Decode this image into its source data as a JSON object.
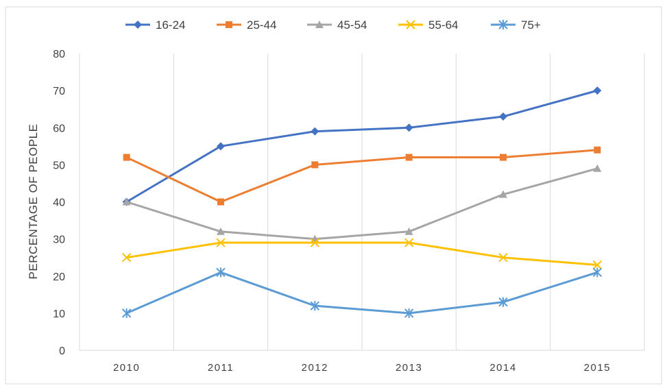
{
  "chart_data": {
    "type": "line",
    "title": "",
    "xlabel": "",
    "ylabel": "PERCENTAGE OF PEOPLE",
    "categories": [
      "2010",
      "2011",
      "2012",
      "2013",
      "2014",
      "2015"
    ],
    "ylim": [
      0,
      80
    ],
    "yticks": [
      0,
      10,
      20,
      30,
      40,
      50,
      60,
      70,
      80
    ],
    "grid": "vertical",
    "legend_position": "top",
    "series": [
      {
        "name": "16-24",
        "values": [
          40,
          55,
          59,
          60,
          63,
          70
        ],
        "color": "#4472C4",
        "marker": "diamond"
      },
      {
        "name": "25-44",
        "values": [
          52,
          40,
          50,
          52,
          52,
          54
        ],
        "color": "#ED7D31",
        "marker": "square"
      },
      {
        "name": "45-54",
        "values": [
          40,
          32,
          30,
          32,
          42,
          49
        ],
        "color": "#A5A5A5",
        "marker": "triangle"
      },
      {
        "name": "55-64",
        "values": [
          25,
          29,
          29,
          29,
          25,
          23
        ],
        "color": "#FFC000",
        "marker": "x"
      },
      {
        "name": "75+",
        "values": [
          10,
          21,
          12,
          10,
          13,
          21
        ],
        "color": "#5B9BD5",
        "marker": "star"
      }
    ]
  }
}
